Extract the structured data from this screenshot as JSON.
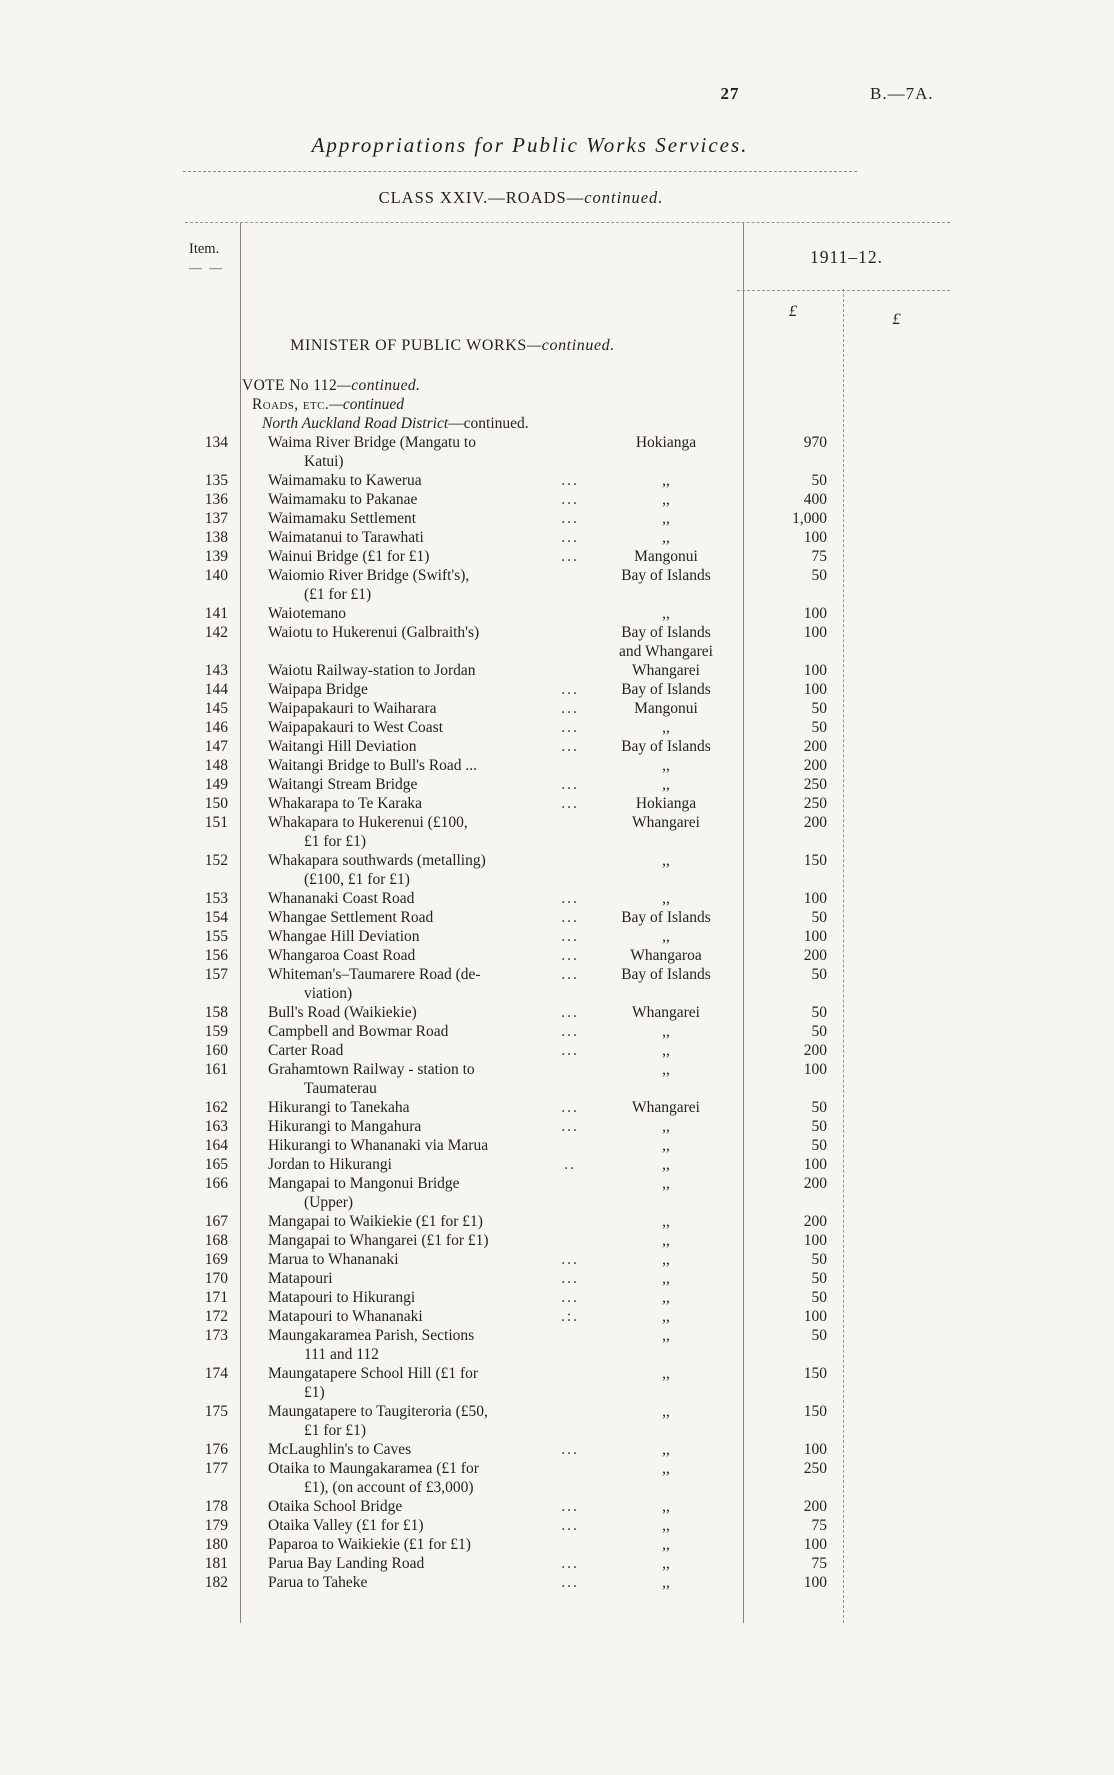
{
  "page": {
    "number": "27",
    "doc_ref": "B.—7A."
  },
  "title": {
    "text": "Appropriations for Public Works Services."
  },
  "subtitle": {
    "main": "CLASS XXIV.—ROADS—",
    "cont": "continued."
  },
  "table": {
    "item_header": "Item.",
    "item_dash": "— —",
    "year_header": "1911–12.",
    "pound1": "£",
    "pound2": "£",
    "sections": {
      "minister": {
        "main": "MINISTER OF PUBLIC WORKS",
        "cont": "—continued."
      },
      "vote": {
        "main": "VOTE No 112",
        "cont": "—continued."
      },
      "roads": {
        "main": "Roads, etc.",
        "cont": "—continued"
      },
      "district": {
        "main": "North Auckland Road District",
        "cont": "—continued."
      }
    },
    "rows": [
      {
        "item": "134",
        "desc": "Waima River Bridge (Mangatu to\nKatui)",
        "dots": "",
        "loc": "Hokianga",
        "amt": "970"
      },
      {
        "item": "135",
        "desc": "Waimamaku to Kawerua",
        "dots": "...",
        "loc": ",,",
        "amt": "50"
      },
      {
        "item": "136",
        "desc": "Waimamaku to Pakanae",
        "dots": "...",
        "loc": ",,",
        "amt": "400"
      },
      {
        "item": "137",
        "desc": "Waimamaku Settlement",
        "dots": "...",
        "loc": ",,",
        "amt": "1,000"
      },
      {
        "item": "138",
        "desc": "Waimatanui to Tarawhati",
        "dots": "...",
        "loc": ",,",
        "amt": "100"
      },
      {
        "item": "139",
        "desc": "Wainui Bridge (£1 for £1)",
        "dots": "...",
        "loc": "Mangonui",
        "amt": "75"
      },
      {
        "item": "140",
        "desc": "Waiomio River Bridge (Swift's),\n(£1 for £1)",
        "dots": "",
        "loc": "Bay of Islands",
        "amt": "50"
      },
      {
        "item": "141",
        "desc": "Waiotemano",
        "dots": "",
        "loc": ",,",
        "amt": "100"
      },
      {
        "item": "142",
        "desc": "Waiotu to Hukerenui (Galbraith's)",
        "dots": "",
        "loc": "Bay of Islands\nand Whangarei",
        "amt": "100"
      },
      {
        "item": "143",
        "desc": "Waiotu Railway-station to Jordan",
        "dots": "",
        "loc": "Whangarei",
        "amt": "100"
      },
      {
        "item": "144",
        "desc": "Waipapa Bridge",
        "dots": "...",
        "loc": "Bay of Islands",
        "amt": "100"
      },
      {
        "item": "145",
        "desc": "Waipapakauri to Waiharara",
        "dots": "...",
        "loc": "Mangonui",
        "amt": "50"
      },
      {
        "item": "146",
        "desc": "Waipapakauri to West Coast",
        "dots": "...",
        "loc": ",,",
        "amt": "50"
      },
      {
        "item": "147",
        "desc": "Waitangi Hill Deviation",
        "dots": "...",
        "loc": "Bay of Islands",
        "amt": "200"
      },
      {
        "item": "148",
        "desc": "Waitangi Bridge to Bull's Road ...",
        "dots": "",
        "loc": ",,",
        "amt": "200"
      },
      {
        "item": "149",
        "desc": "Waitangi Stream Bridge",
        "dots": "...",
        "loc": ",,",
        "amt": "250"
      },
      {
        "item": "150",
        "desc": "Whakarapa to Te Karaka",
        "dots": "...",
        "loc": "Hokianga",
        "amt": "250"
      },
      {
        "item": "151",
        "desc": "Whakapara to Hukerenui (£100,\n£1 for £1)",
        "dots": "",
        "loc": "Whangarei",
        "amt": "200"
      },
      {
        "item": "152",
        "desc": "Whakapara southwards (metalling)\n(£100, £1 for £1)",
        "dots": "",
        "loc": ",,",
        "amt": "150"
      },
      {
        "item": "153",
        "desc": "Whananaki Coast Road",
        "dots": "...",
        "loc": ",,",
        "amt": "100"
      },
      {
        "item": "154",
        "desc": "Whangae Settlement Road",
        "dots": "...",
        "loc": "Bay of Islands",
        "amt": "50"
      },
      {
        "item": "155",
        "desc": "Whangae Hill Deviation",
        "dots": "...",
        "loc": ",,",
        "amt": "100"
      },
      {
        "item": "156",
        "desc": "Whangaroa Coast Road",
        "dots": "...",
        "loc": "Whangaroa",
        "amt": "200"
      },
      {
        "item": "157",
        "desc": "Whiteman's–Taumarere Road (de-\nviation)",
        "dots": "...",
        "loc": "Bay of Islands",
        "amt": "50"
      },
      {
        "item": "158",
        "desc": "Bull's Road (Waikiekie)",
        "dots": "...",
        "loc": "Whangarei",
        "amt": "50"
      },
      {
        "item": "159",
        "desc": "Campbell and Bowmar Road",
        "dots": "...",
        "loc": ",,",
        "amt": "50"
      },
      {
        "item": "160",
        "desc": "Carter Road",
        "dots": "...",
        "loc": ",,",
        "amt": "200"
      },
      {
        "item": "161",
        "desc": "Grahamtown Railway - station to\nTaumaterau",
        "dots": "",
        "loc": ",,",
        "amt": "100"
      },
      {
        "item": "162",
        "desc": "Hikurangi to Tanekaha",
        "dots": "...",
        "loc": "Whangarei",
        "amt": "50"
      },
      {
        "item": "163",
        "desc": "Hikurangi to Mangahura",
        "dots": "...",
        "loc": ",,",
        "amt": "50"
      },
      {
        "item": "164",
        "desc": "Hikurangi to Whananaki via Marua",
        "dots": "",
        "loc": ",,",
        "amt": "50"
      },
      {
        "item": "165",
        "desc": "Jordan to Hikurangi",
        "dots": "..",
        "loc": ",,",
        "amt": "100"
      },
      {
        "item": "166",
        "desc": "Mangapai to Mangonui Bridge\n(Upper)",
        "dots": "",
        "loc": ",,",
        "amt": "200"
      },
      {
        "item": "167",
        "desc": "Mangapai to Waikiekie (£1 for £1)",
        "dots": "",
        "loc": ",,",
        "amt": "200"
      },
      {
        "item": "168",
        "desc": "Mangapai to Whangarei (£1 for £1)",
        "dots": "",
        "loc": ",,",
        "amt": "100"
      },
      {
        "item": "169",
        "desc": "Marua to Whananaki",
        "dots": "...",
        "loc": ",,",
        "amt": "50"
      },
      {
        "item": "170",
        "desc": "Matapouri",
        "dots": "...",
        "loc": ",,",
        "amt": "50"
      },
      {
        "item": "171",
        "desc": "Matapouri to Hikurangi",
        "dots": "...",
        "loc": ",,",
        "amt": "50"
      },
      {
        "item": "172",
        "desc": "Matapouri to Whananaki",
        "dots": ".:.",
        "loc": ",,",
        "amt": "100"
      },
      {
        "item": "173",
        "desc": "Maungakaramea Parish, Sections\n111 and 112",
        "dots": "",
        "loc": ",,",
        "amt": "50"
      },
      {
        "item": "174",
        "desc": "Maungatapere School Hill (£1 for\n£1)",
        "dots": "",
        "loc": ",,",
        "amt": "150"
      },
      {
        "item": "175",
        "desc": "Maungatapere to Taugiteroria (£50,\n£1 for £1)",
        "dots": "",
        "loc": ",,",
        "amt": "150"
      },
      {
        "item": "176",
        "desc": "McLaughlin's to Caves",
        "dots": "...",
        "loc": ",,",
        "amt": "100"
      },
      {
        "item": "177",
        "desc": "Otaika to Maungakaramea (£1 for\n£1), (on account of £3,000)",
        "dots": "",
        "loc": ",,",
        "amt": "250"
      },
      {
        "item": "178",
        "desc": "Otaika School Bridge",
        "dots": "...",
        "loc": ",,",
        "amt": "200"
      },
      {
        "item": "179",
        "desc": "Otaika Valley (£1 for £1)",
        "dots": "...",
        "loc": ",,",
        "amt": "75"
      },
      {
        "item": "180",
        "desc": "Paparoa to Waikiekie (£1 for £1)",
        "dots": "",
        "loc": ",,",
        "amt": "100"
      },
      {
        "item": "181",
        "desc": "Parua Bay Landing Road",
        "dots": "...",
        "loc": ",,",
        "amt": "75"
      },
      {
        "item": "182",
        "desc": "Parua to Taheke",
        "dots": "...",
        "loc": ",,",
        "amt": "100"
      }
    ]
  }
}
